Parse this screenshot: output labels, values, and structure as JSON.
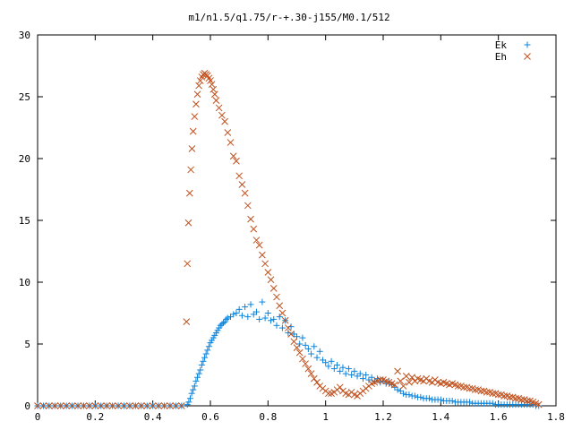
{
  "chart_data": {
    "type": "scatter",
    "title": "m1/n1.5/q1.75/r-+.30-j155/M0.1/512",
    "xlabel": "",
    "ylabel": "",
    "xlim": [
      0,
      1.8
    ],
    "ylim": [
      0,
      30
    ],
    "xticks": [
      "0",
      "0.2",
      "0.4",
      "0.6",
      "0.8",
      "1",
      "1.2",
      "1.4",
      "1.6",
      "1.8"
    ],
    "yticks": [
      "0",
      "5",
      "10",
      "15",
      "20",
      "25",
      "30"
    ],
    "grid": false,
    "legend_position": "top-right",
    "series": [
      {
        "name": "Ek",
        "marker": "plus",
        "color": "#0a84dc",
        "points": [
          [
            0.0,
            0
          ],
          [
            0.02,
            0
          ],
          [
            0.04,
            0
          ],
          [
            0.06,
            0
          ],
          [
            0.08,
            0
          ],
          [
            0.1,
            0
          ],
          [
            0.12,
            0
          ],
          [
            0.14,
            0
          ],
          [
            0.16,
            0
          ],
          [
            0.18,
            0
          ],
          [
            0.2,
            0
          ],
          [
            0.22,
            0
          ],
          [
            0.24,
            0
          ],
          [
            0.26,
            0
          ],
          [
            0.28,
            0
          ],
          [
            0.3,
            0
          ],
          [
            0.32,
            0
          ],
          [
            0.34,
            0
          ],
          [
            0.36,
            0
          ],
          [
            0.38,
            0
          ],
          [
            0.4,
            0
          ],
          [
            0.42,
            0
          ],
          [
            0.44,
            0
          ],
          [
            0.46,
            0
          ],
          [
            0.48,
            0
          ],
          [
            0.5,
            0
          ],
          [
            0.52,
            0.1
          ],
          [
            0.525,
            0.3
          ],
          [
            0.53,
            0.6
          ],
          [
            0.535,
            1.0
          ],
          [
            0.54,
            1.3
          ],
          [
            0.545,
            1.6
          ],
          [
            0.55,
            2.0
          ],
          [
            0.555,
            2.3
          ],
          [
            0.56,
            2.6
          ],
          [
            0.565,
            2.9
          ],
          [
            0.57,
            3.3
          ],
          [
            0.575,
            3.6
          ],
          [
            0.58,
            3.9
          ],
          [
            0.585,
            4.2
          ],
          [
            0.59,
            4.5
          ],
          [
            0.595,
            4.8
          ],
          [
            0.6,
            5.1
          ],
          [
            0.605,
            5.3
          ],
          [
            0.61,
            5.5
          ],
          [
            0.615,
            5.7
          ],
          [
            0.62,
            5.9
          ],
          [
            0.625,
            6.1
          ],
          [
            0.63,
            6.3
          ],
          [
            0.635,
            6.5
          ],
          [
            0.64,
            6.6
          ],
          [
            0.645,
            6.7
          ],
          [
            0.65,
            6.8
          ],
          [
            0.655,
            7.0
          ],
          [
            0.66,
            7.1
          ],
          [
            0.67,
            7.2
          ],
          [
            0.68,
            7.4
          ],
          [
            0.69,
            7.5
          ],
          [
            0.7,
            7.8
          ],
          [
            0.71,
            7.3
          ],
          [
            0.72,
            8.0
          ],
          [
            0.73,
            7.2
          ],
          [
            0.74,
            8.2
          ],
          [
            0.75,
            7.4
          ],
          [
            0.76,
            7.6
          ],
          [
            0.77,
            7.0
          ],
          [
            0.78,
            8.4
          ],
          [
            0.79,
            7.1
          ],
          [
            0.8,
            7.5
          ],
          [
            0.81,
            6.9
          ],
          [
            0.82,
            7.0
          ],
          [
            0.83,
            6.5
          ],
          [
            0.84,
            7.2
          ],
          [
            0.85,
            6.3
          ],
          [
            0.86,
            6.9
          ],
          [
            0.87,
            5.9
          ],
          [
            0.88,
            6.4
          ],
          [
            0.89,
            5.8
          ],
          [
            0.9,
            5.6
          ],
          [
            0.91,
            5.0
          ],
          [
            0.92,
            5.5
          ],
          [
            0.93,
            4.9
          ],
          [
            0.94,
            4.6
          ],
          [
            0.95,
            4.2
          ],
          [
            0.96,
            4.8
          ],
          [
            0.97,
            3.9
          ],
          [
            0.98,
            4.4
          ],
          [
            0.99,
            3.7
          ],
          [
            1.0,
            3.5
          ],
          [
            1.01,
            3.2
          ],
          [
            1.02,
            3.6
          ],
          [
            1.03,
            3.0
          ],
          [
            1.04,
            3.3
          ],
          [
            1.05,
            2.8
          ],
          [
            1.06,
            3.1
          ],
          [
            1.07,
            2.6
          ],
          [
            1.08,
            3.0
          ],
          [
            1.09,
            2.5
          ],
          [
            1.1,
            2.8
          ],
          [
            1.11,
            2.4
          ],
          [
            1.12,
            2.6
          ],
          [
            1.13,
            2.2
          ],
          [
            1.14,
            2.5
          ],
          [
            1.15,
            2.1
          ],
          [
            1.16,
            2.3
          ],
          [
            1.17,
            2.0
          ],
          [
            1.18,
            2.2
          ],
          [
            1.19,
            1.9
          ],
          [
            1.2,
            2.0
          ],
          [
            1.21,
            1.8
          ],
          [
            1.22,
            1.9
          ],
          [
            1.23,
            1.7
          ],
          [
            1.24,
            1.5
          ],
          [
            1.25,
            1.3
          ],
          [
            1.26,
            1.2
          ],
          [
            1.27,
            1.0
          ],
          [
            1.28,
            0.9
          ],
          [
            1.29,
            0.9
          ],
          [
            1.3,
            0.8
          ],
          [
            1.31,
            0.8
          ],
          [
            1.32,
            0.7
          ],
          [
            1.33,
            0.7
          ],
          [
            1.34,
            0.6
          ],
          [
            1.35,
            0.6
          ],
          [
            1.36,
            0.6
          ],
          [
            1.37,
            0.5
          ],
          [
            1.38,
            0.5
          ],
          [
            1.39,
            0.5
          ],
          [
            1.4,
            0.5
          ],
          [
            1.41,
            0.4
          ],
          [
            1.42,
            0.4
          ],
          [
            1.43,
            0.4
          ],
          [
            1.44,
            0.4
          ],
          [
            1.45,
            0.3
          ],
          [
            1.46,
            0.3
          ],
          [
            1.47,
            0.3
          ],
          [
            1.48,
            0.3
          ],
          [
            1.49,
            0.3
          ],
          [
            1.5,
            0.3
          ],
          [
            1.51,
            0.2
          ],
          [
            1.52,
            0.2
          ],
          [
            1.53,
            0.2
          ],
          [
            1.54,
            0.2
          ],
          [
            1.55,
            0.2
          ],
          [
            1.56,
            0.2
          ],
          [
            1.57,
            0.2
          ],
          [
            1.58,
            0.2
          ],
          [
            1.59,
            0.1
          ],
          [
            1.6,
            0.1
          ],
          [
            1.61,
            0.1
          ],
          [
            1.62,
            0.1
          ],
          [
            1.63,
            0.1
          ],
          [
            1.64,
            0.1
          ],
          [
            1.65,
            0.1
          ],
          [
            1.66,
            0.1
          ],
          [
            1.67,
            0.1
          ],
          [
            1.68,
            0.1
          ],
          [
            1.69,
            0.1
          ],
          [
            1.7,
            0.1
          ],
          [
            1.71,
            0.1
          ],
          [
            1.72,
            0.1
          ],
          [
            1.73,
            0.0
          ],
          [
            1.74,
            0.0
          ]
        ]
      },
      {
        "name": "Eh",
        "marker": "cross",
        "color": "#c0501c",
        "points": [
          [
            0.0,
            0
          ],
          [
            0.02,
            0
          ],
          [
            0.04,
            0
          ],
          [
            0.06,
            0
          ],
          [
            0.08,
            0
          ],
          [
            0.1,
            0
          ],
          [
            0.12,
            0
          ],
          [
            0.14,
            0
          ],
          [
            0.16,
            0
          ],
          [
            0.18,
            0
          ],
          [
            0.2,
            0
          ],
          [
            0.22,
            0
          ],
          [
            0.24,
            0
          ],
          [
            0.26,
            0
          ],
          [
            0.28,
            0
          ],
          [
            0.3,
            0
          ],
          [
            0.32,
            0
          ],
          [
            0.34,
            0
          ],
          [
            0.36,
            0
          ],
          [
            0.38,
            0
          ],
          [
            0.4,
            0
          ],
          [
            0.42,
            0
          ],
          [
            0.44,
            0
          ],
          [
            0.46,
            0
          ],
          [
            0.48,
            0
          ],
          [
            0.5,
            0
          ],
          [
            0.517,
            6.8
          ],
          [
            0.52,
            11.5
          ],
          [
            0.524,
            14.8
          ],
          [
            0.528,
            17.2
          ],
          [
            0.532,
            19.1
          ],
          [
            0.536,
            20.8
          ],
          [
            0.54,
            22.2
          ],
          [
            0.545,
            23.4
          ],
          [
            0.55,
            24.4
          ],
          [
            0.555,
            25.2
          ],
          [
            0.56,
            25.9
          ],
          [
            0.565,
            26.3
          ],
          [
            0.57,
            26.6
          ],
          [
            0.575,
            26.8
          ],
          [
            0.58,
            26.9
          ],
          [
            0.585,
            26.8
          ],
          [
            0.59,
            26.7
          ],
          [
            0.595,
            26.5
          ],
          [
            0.6,
            26.3
          ],
          [
            0.605,
            26.0
          ],
          [
            0.61,
            25.6
          ],
          [
            0.615,
            25.2
          ],
          [
            0.62,
            24.7
          ],
          [
            0.63,
            24.1
          ],
          [
            0.64,
            23.5
          ],
          [
            0.65,
            23.0
          ],
          [
            0.66,
            22.1
          ],
          [
            0.67,
            21.3
          ],
          [
            0.68,
            20.2
          ],
          [
            0.69,
            19.8
          ],
          [
            0.7,
            18.6
          ],
          [
            0.71,
            17.9
          ],
          [
            0.72,
            17.2
          ],
          [
            0.73,
            16.2
          ],
          [
            0.74,
            15.1
          ],
          [
            0.75,
            14.3
          ],
          [
            0.76,
            13.4
          ],
          [
            0.77,
            13.0
          ],
          [
            0.78,
            12.2
          ],
          [
            0.79,
            11.5
          ],
          [
            0.8,
            10.8
          ],
          [
            0.81,
            10.2
          ],
          [
            0.82,
            9.5
          ],
          [
            0.83,
            8.8
          ],
          [
            0.84,
            8.1
          ],
          [
            0.85,
            7.5
          ],
          [
            0.86,
            6.9
          ],
          [
            0.87,
            6.3
          ],
          [
            0.88,
            5.8
          ],
          [
            0.89,
            5.2
          ],
          [
            0.9,
            4.7
          ],
          [
            0.91,
            4.3
          ],
          [
            0.92,
            3.8
          ],
          [
            0.93,
            3.4
          ],
          [
            0.94,
            3.0
          ],
          [
            0.95,
            2.6
          ],
          [
            0.96,
            2.2
          ],
          [
            0.97,
            1.9
          ],
          [
            0.98,
            1.6
          ],
          [
            0.99,
            1.4
          ],
          [
            1.0,
            1.2
          ],
          [
            1.01,
            1.0
          ],
          [
            1.02,
            1.0
          ],
          [
            1.03,
            1.1
          ],
          [
            1.04,
            1.3
          ],
          [
            1.05,
            1.5
          ],
          [
            1.06,
            1.2
          ],
          [
            1.07,
            1.0
          ],
          [
            1.08,
            0.9
          ],
          [
            1.09,
            1.1
          ],
          [
            1.1,
            0.9
          ],
          [
            1.11,
            0.8
          ],
          [
            1.12,
            1.0
          ],
          [
            1.13,
            1.2
          ],
          [
            1.14,
            1.4
          ],
          [
            1.15,
            1.6
          ],
          [
            1.16,
            1.8
          ],
          [
            1.17,
            1.9
          ],
          [
            1.18,
            2.0
          ],
          [
            1.19,
            2.1
          ],
          [
            1.2,
            2.1
          ],
          [
            1.21,
            2.0
          ],
          [
            1.22,
            1.9
          ],
          [
            1.23,
            1.8
          ],
          [
            1.24,
            1.7
          ],
          [
            1.25,
            2.8
          ],
          [
            1.26,
            2.0
          ],
          [
            1.27,
            1.6
          ],
          [
            1.28,
            2.4
          ],
          [
            1.29,
            1.9
          ],
          [
            1.3,
            2.3
          ],
          [
            1.31,
            2.0
          ],
          [
            1.32,
            2.2
          ],
          [
            1.33,
            2.1
          ],
          [
            1.34,
            2.0
          ],
          [
            1.35,
            2.2
          ],
          [
            1.36,
            2.0
          ],
          [
            1.37,
            1.9
          ],
          [
            1.38,
            2.1
          ],
          [
            1.39,
            1.9
          ],
          [
            1.4,
            1.8
          ],
          [
            1.41,
            1.9
          ],
          [
            1.42,
            1.8
          ],
          [
            1.43,
            1.7
          ],
          [
            1.44,
            1.8
          ],
          [
            1.45,
            1.7
          ],
          [
            1.46,
            1.6
          ],
          [
            1.47,
            1.6
          ],
          [
            1.48,
            1.5
          ],
          [
            1.49,
            1.5
          ],
          [
            1.5,
            1.4
          ],
          [
            1.51,
            1.4
          ],
          [
            1.52,
            1.3
          ],
          [
            1.53,
            1.3
          ],
          [
            1.54,
            1.2
          ],
          [
            1.55,
            1.2
          ],
          [
            1.56,
            1.1
          ],
          [
            1.57,
            1.1
          ],
          [
            1.58,
            1.0
          ],
          [
            1.59,
            1.0
          ],
          [
            1.6,
            0.9
          ],
          [
            1.61,
            0.9
          ],
          [
            1.62,
            0.8
          ],
          [
            1.63,
            0.8
          ],
          [
            1.64,
            0.7
          ],
          [
            1.65,
            0.7
          ],
          [
            1.66,
            0.6
          ],
          [
            1.67,
            0.6
          ],
          [
            1.68,
            0.5
          ],
          [
            1.69,
            0.5
          ],
          [
            1.7,
            0.4
          ],
          [
            1.71,
            0.4
          ],
          [
            1.72,
            0.3
          ],
          [
            1.73,
            0.2
          ],
          [
            1.74,
            0.1
          ]
        ]
      }
    ]
  }
}
